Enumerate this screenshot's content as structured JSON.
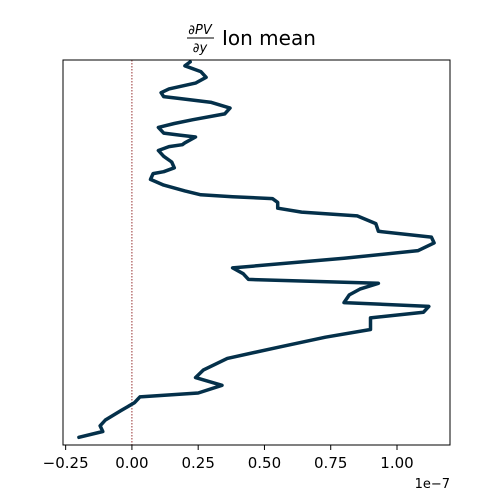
{
  "chart_data": {
    "type": "line",
    "title": {
      "numerator": "∂PV",
      "denominator": "∂y",
      "text": "Ion mean"
    },
    "xlabel": "",
    "ylabel": "",
    "x_offset_label": "1e−7",
    "x_scale": 1e-07,
    "xlim": [
      -0.26,
      1.2
    ],
    "ylim": [
      0,
      1
    ],
    "x_ticks": [
      -0.25,
      0.0,
      0.25,
      0.5,
      0.75,
      1.0
    ],
    "x_tick_labels": [
      "−0.25",
      "0.00",
      "0.25",
      "0.50",
      "0.75",
      "1.00"
    ],
    "y_ticks_visible": false,
    "grid": false,
    "reference_line": {
      "x": 0.0,
      "color": "#8b1a1a",
      "style": "dotted"
    },
    "colors": {
      "line": "#04304a",
      "reference": "#8b1a1a"
    },
    "series": [
      {
        "x": [
          -0.2,
          -0.11,
          -0.12,
          -0.1,
          -0.04,
          0.01,
          0.03,
          0.25,
          0.34,
          0.24,
          0.27,
          0.36,
          0.56,
          0.73,
          0.9,
          0.9,
          0.9,
          1.1,
          1.12,
          0.8,
          0.82,
          0.86,
          0.93,
          0.44,
          0.42,
          0.38,
          0.8,
          1.08,
          1.14,
          1.13,
          0.93,
          0.92,
          0.85,
          0.64,
          0.55,
          0.55,
          0.53,
          0.38,
          0.26,
          0.2,
          0.12,
          0.07,
          0.08,
          0.12,
          0.16,
          0.15,
          0.12,
          0.1,
          0.14,
          0.19,
          0.2,
          0.24,
          0.18,
          0.12,
          0.1,
          0.16,
          0.23,
          0.35,
          0.37,
          0.3,
          0.18,
          0.12,
          0.11,
          0.14,
          0.24,
          0.28,
          0.26,
          0.2,
          0.22
        ],
        "y": [
          0.02,
          0.035,
          0.05,
          0.065,
          0.09,
          0.11,
          0.125,
          0.135,
          0.155,
          0.175,
          0.195,
          0.225,
          0.255,
          0.28,
          0.3,
          0.315,
          0.33,
          0.345,
          0.36,
          0.37,
          0.39,
          0.405,
          0.42,
          0.43,
          0.445,
          0.46,
          0.485,
          0.505,
          0.525,
          0.54,
          0.555,
          0.575,
          0.595,
          0.605,
          0.615,
          0.63,
          0.64,
          0.645,
          0.65,
          0.66,
          0.675,
          0.69,
          0.705,
          0.71,
          0.72,
          0.735,
          0.75,
          0.765,
          0.775,
          0.78,
          0.785,
          0.8,
          0.805,
          0.81,
          0.825,
          0.835,
          0.845,
          0.86,
          0.875,
          0.89,
          0.9,
          0.905,
          0.915,
          0.925,
          0.94,
          0.955,
          0.97,
          0.985,
          0.995
        ]
      }
    ]
  }
}
